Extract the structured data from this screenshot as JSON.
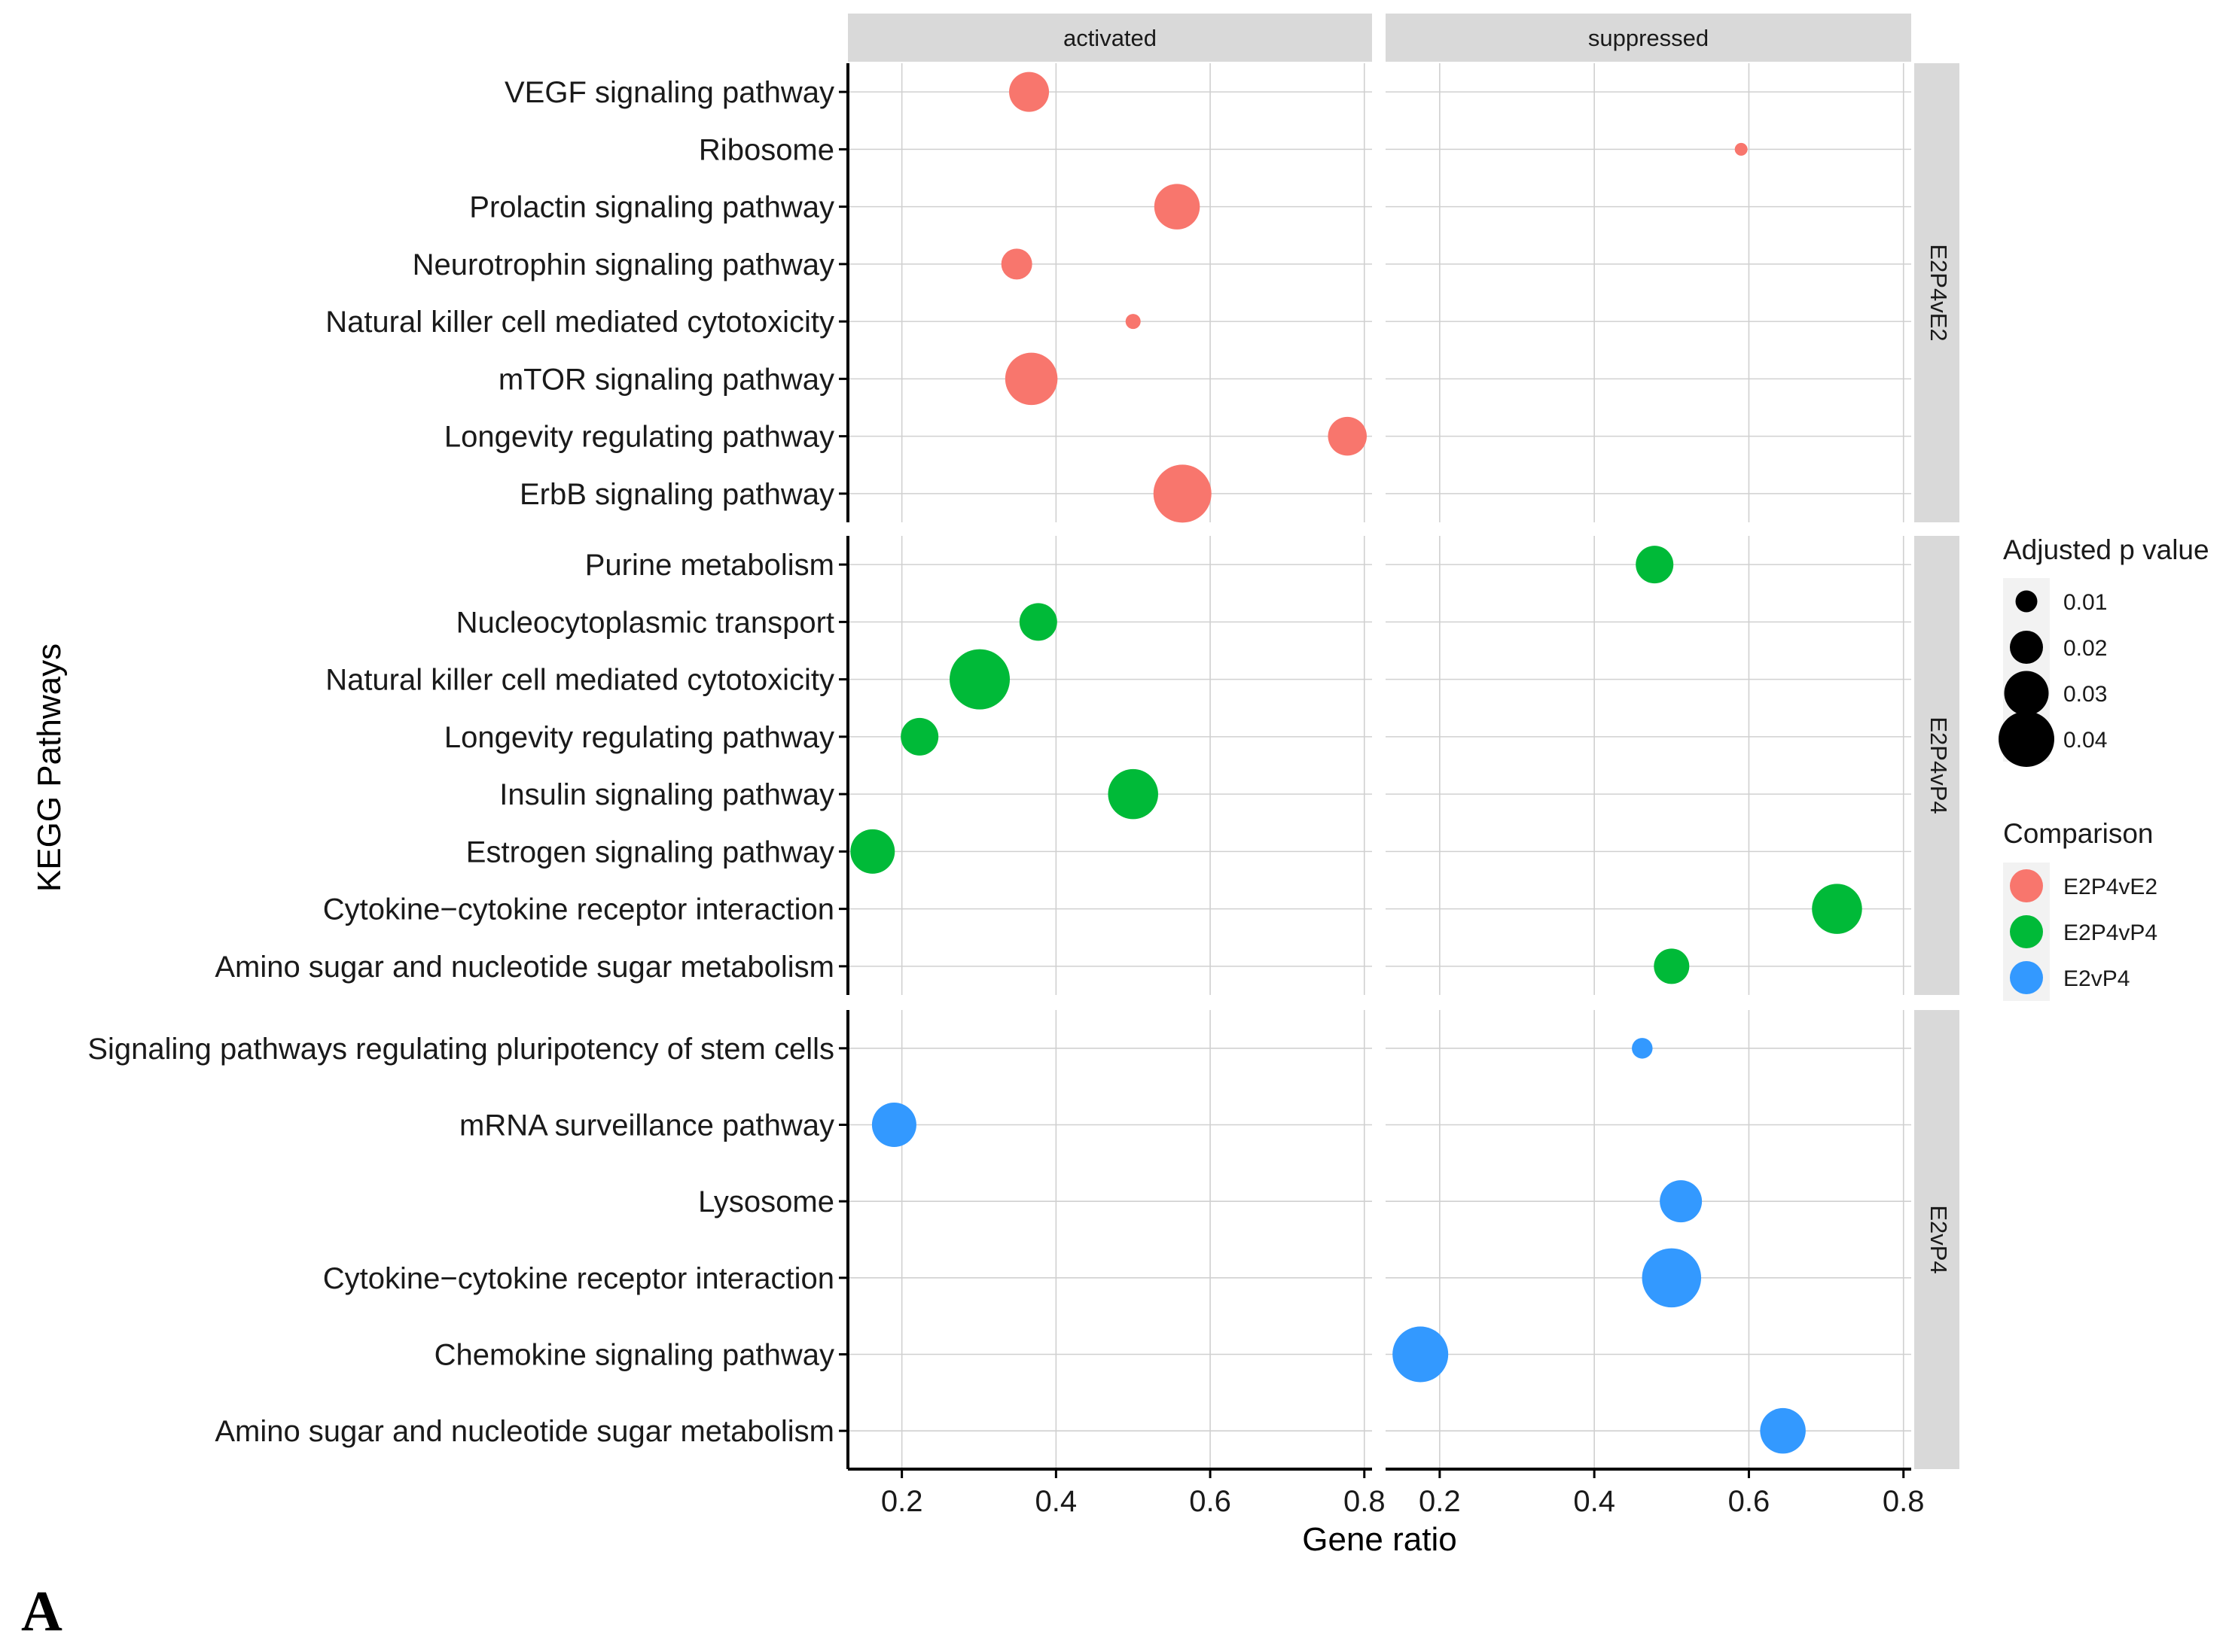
{
  "figure_label": "A",
  "chart_data": {
    "type": "scatter",
    "xlabel": "Gene ratio",
    "ylabel": "KEGG Pathways",
    "xlim": [
      0.13,
      0.81
    ],
    "x_ticks": [
      0.2,
      0.4,
      0.6,
      0.8
    ],
    "x_tick_labels": [
      "0.2",
      "0.4",
      "0.6",
      "0.8"
    ],
    "column_facets": [
      "activated",
      "suppressed"
    ],
    "row_facets": [
      {
        "name": "E2P4vE2",
        "color": "#F8766D",
        "categories": [
          "VEGF signaling pathway",
          "Ribosome",
          "Prolactin signaling pathway",
          "Neurotrophin signaling pathway",
          "Natural killer cell mediated cytotoxicity",
          "mTOR signaling pathway",
          "Longevity regulating pathway",
          "ErbB signaling pathway"
        ],
        "points": [
          {
            "category": "VEGF signaling pathway",
            "facet": "activated",
            "x": 0.365,
            "p": 0.026
          },
          {
            "category": "Ribosome",
            "facet": "suppressed",
            "x": 0.59,
            "p": 0.002
          },
          {
            "category": "Prolactin signaling pathway",
            "facet": "activated",
            "x": 0.557,
            "p": 0.031
          },
          {
            "category": "Neurotrophin signaling pathway",
            "facet": "activated",
            "x": 0.349,
            "p": 0.018
          },
          {
            "category": "Natural killer cell mediated cytotoxicity",
            "facet": "activated",
            "x": 0.5,
            "p": 0.004
          },
          {
            "category": "mTOR signaling pathway",
            "facet": "activated",
            "x": 0.368,
            "p": 0.037
          },
          {
            "category": "Longevity regulating pathway",
            "facet": "activated",
            "x": 0.778,
            "p": 0.025
          },
          {
            "category": "ErbB signaling pathway",
            "facet": "activated",
            "x": 0.564,
            "p": 0.042
          }
        ]
      },
      {
        "name": "E2P4vP4",
        "color": "#00BA38",
        "categories": [
          "Purine metabolism",
          "Nucleocytoplasmic transport",
          "Natural killer cell mediated cytotoxicity",
          "Longevity regulating pathway",
          "Insulin signaling pathway",
          "Estrogen signaling pathway",
          "Cytokine−cytokine receptor interaction",
          "Amino sugar and nucleotide sugar metabolism"
        ],
        "points": [
          {
            "category": "Purine metabolism",
            "facet": "suppressed",
            "x": 0.478,
            "p": 0.024
          },
          {
            "category": "Nucleocytoplasmic transport",
            "facet": "activated",
            "x": 0.377,
            "p": 0.024
          },
          {
            "category": "Natural killer cell mediated cytotoxicity",
            "facet": "activated",
            "x": 0.301,
            "p": 0.044
          },
          {
            "category": "Longevity regulating pathway",
            "facet": "activated",
            "x": 0.223,
            "p": 0.024
          },
          {
            "category": "Insulin signaling pathway",
            "facet": "activated",
            "x": 0.5,
            "p": 0.035
          },
          {
            "category": "Estrogen signaling pathway",
            "facet": "activated",
            "x": 0.162,
            "p": 0.03
          },
          {
            "category": "Cytokine−cytokine receptor interaction",
            "facet": "suppressed",
            "x": 0.714,
            "p": 0.035
          },
          {
            "category": "Amino sugar and nucleotide sugar metabolism",
            "facet": "suppressed",
            "x": 0.5,
            "p": 0.022
          }
        ]
      },
      {
        "name": "E2vP4",
        "color": "#3399FF",
        "categories": [
          "Signaling pathways regulating pluripotency of stem cells",
          "mRNA surveillance pathway",
          "Lysosome",
          "Cytokine−cytokine receptor interaction",
          "Chemokine signaling pathway",
          "Amino sugar and nucleotide sugar metabolism"
        ],
        "points": [
          {
            "category": "Signaling pathways regulating pluripotency of stem cells",
            "facet": "suppressed",
            "x": 0.462,
            "p": 0.009
          },
          {
            "category": "mRNA surveillance pathway",
            "facet": "activated",
            "x": 0.19,
            "p": 0.03
          },
          {
            "category": "Lysosome",
            "facet": "suppressed",
            "x": 0.512,
            "p": 0.028
          },
          {
            "category": "Cytokine−cytokine receptor interaction",
            "facet": "suppressed",
            "x": 0.5,
            "p": 0.043
          },
          {
            "category": "Chemokine signaling pathway",
            "facet": "suppressed",
            "x": 0.175,
            "p": 0.04
          },
          {
            "category": "Amino sugar and nucleotide sugar metabolism",
            "facet": "suppressed",
            "x": 0.644,
            "p": 0.031
          }
        ]
      }
    ],
    "legend": {
      "size": {
        "title": "Adjusted p value",
        "values": [
          0.01,
          0.02,
          0.03,
          0.04
        ],
        "labels": [
          "0.01",
          "0.02",
          "0.03",
          "0.04"
        ],
        "key_color": "#000000"
      },
      "color": {
        "title": "Comparison",
        "entries": [
          {
            "label": "E2P4vE2",
            "color": "#F8766D"
          },
          {
            "label": "E2P4vP4",
            "color": "#00BA38"
          },
          {
            "label": "E2vP4",
            "color": "#3399FF"
          }
        ]
      },
      "placement": "right"
    }
  }
}
